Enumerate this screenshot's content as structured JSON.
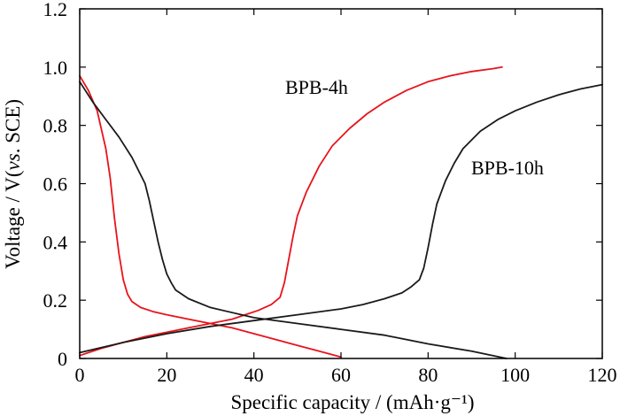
{
  "chart_data": {
    "type": "line",
    "xlabel": "Specific capacity / (mAh·g⁻¹)",
    "ylabel_parts": [
      "Voltage / V(",
      "vs",
      ". SCE)"
    ],
    "xlim": [
      0,
      120
    ],
    "ylim": [
      0,
      1.2
    ],
    "xticks": [
      "0",
      "20",
      "40",
      "60",
      "80",
      "100",
      "120"
    ],
    "yticks": [
      "0",
      "0.2",
      "0.4",
      "0.6",
      "0.8",
      "1.0",
      "1.2"
    ],
    "grid": false,
    "series": [
      {
        "name": "BPB-4h",
        "color": "#e8131b",
        "curves": [
          {
            "x": [
              0,
              2,
              4,
              6,
              7,
              8,
              9,
              10,
              11,
              12,
              14,
              17,
              20,
              25,
              30,
              35,
              40,
              45,
              50,
              55,
              60
            ],
            "y": [
              0.97,
              0.92,
              0.85,
              0.72,
              0.62,
              0.48,
              0.36,
              0.27,
              0.22,
              0.195,
              0.175,
              0.16,
              0.15,
              0.135,
              0.12,
              0.105,
              0.085,
              0.065,
              0.045,
              0.025,
              0.005
            ]
          },
          {
            "x": [
              0,
              5,
              10,
              15,
              20,
              25,
              30,
              35,
              38,
              41,
              44,
              46,
              47,
              48,
              49,
              50,
              52,
              55,
              58,
              62,
              66,
              70,
              75,
              80,
              85,
              90,
              95,
              97
            ],
            "y": [
              0.01,
              0.035,
              0.055,
              0.075,
              0.09,
              0.105,
              0.12,
              0.135,
              0.15,
              0.165,
              0.185,
              0.21,
              0.26,
              0.34,
              0.42,
              0.49,
              0.57,
              0.66,
              0.73,
              0.79,
              0.84,
              0.88,
              0.92,
              0.95,
              0.97,
              0.985,
              0.995,
              1.0
            ]
          }
        ]
      },
      {
        "name": "BPB-10h",
        "color": "#1a1a1a",
        "curves": [
          {
            "x": [
              0,
              3,
              6,
              9,
              12,
              15,
              16,
              17,
              18,
              19,
              20,
              21,
              22,
              25,
              30,
              40,
              50,
              60,
              70,
              80,
              90,
              98
            ],
            "y": [
              0.95,
              0.88,
              0.82,
              0.76,
              0.69,
              0.6,
              0.54,
              0.47,
              0.4,
              0.34,
              0.29,
              0.26,
              0.235,
              0.205,
              0.175,
              0.14,
              0.12,
              0.1,
              0.08,
              0.05,
              0.025,
              0.0
            ]
          },
          {
            "x": [
              0,
              10,
              20,
              30,
              40,
              50,
              60,
              65,
              70,
              74,
              76,
              78,
              79,
              80,
              81,
              82,
              84,
              86,
              88,
              92,
              96,
              100,
              105,
              110,
              115,
              120
            ],
            "y": [
              0.02,
              0.055,
              0.085,
              0.11,
              0.13,
              0.15,
              0.17,
              0.185,
              0.205,
              0.225,
              0.245,
              0.27,
              0.31,
              0.38,
              0.46,
              0.53,
              0.61,
              0.67,
              0.72,
              0.78,
              0.82,
              0.85,
              0.88,
              0.905,
              0.925,
              0.94
            ]
          }
        ]
      }
    ]
  }
}
